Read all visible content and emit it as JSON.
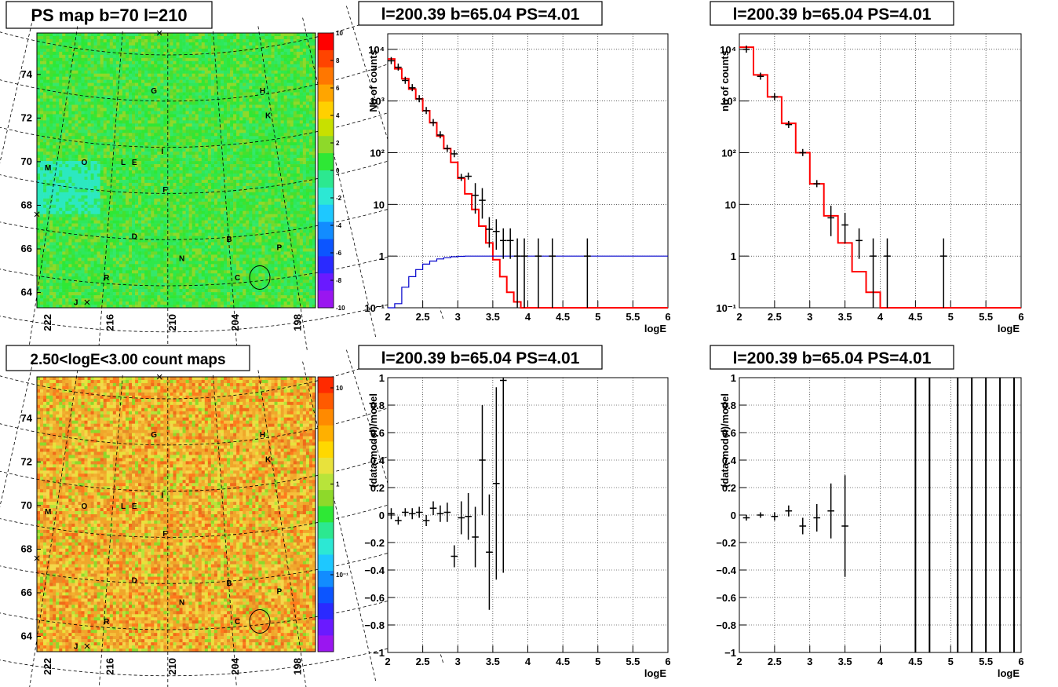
{
  "panels": [
    {
      "id": "psmap",
      "title": "PS map b=70 l=210"
    },
    {
      "id": "spec1",
      "title": "l=200.39 b=65.04 PS=4.01"
    },
    {
      "id": "spec2",
      "title": "l=200.39 b=65.04 PS=4.01"
    },
    {
      "id": "countmap",
      "title": "2.50<logE<3.00 count maps"
    },
    {
      "id": "resid1",
      "title": "l=200.39 b=65.04 PS=4.01"
    },
    {
      "id": "resid2",
      "title": "l=200.39 b=65.04 PS=4.01"
    }
  ],
  "chart_data": [
    {
      "type": "heatmap",
      "title": "PS map b=70 l=210",
      "x_ticks": [
        "222",
        "216",
        "210",
        "204",
        "198"
      ],
      "y_ticks": [
        "64",
        "66",
        "68",
        "70",
        "72",
        "74"
      ],
      "colorbar_ticks": [
        "10",
        "8",
        "6",
        "4",
        "2",
        "0",
        "-2",
        "-4",
        "-6",
        "-8",
        "-10"
      ],
      "zlim": [
        -10,
        10
      ],
      "labels": [
        "G",
        "H",
        "K",
        "I",
        "M",
        "O",
        "L",
        "E",
        "F",
        "D",
        "B",
        "P",
        "N",
        "R",
        "C",
        "J"
      ],
      "colors": {
        "background": "#2ee835",
        "accent": "#8ed92a"
      }
    },
    {
      "type": "line",
      "title": "l=200.39 b=65.04 PS=4.01",
      "xlabel": "logE",
      "ylabel": "Nb of counts",
      "xlim": [
        2,
        6
      ],
      "ylim": [
        0.1,
        20000
      ],
      "yscale": "log",
      "grid": true,
      "x_ticks": [
        "2",
        "2.5",
        "3",
        "3.5",
        "4",
        "4.5",
        "5",
        "5.5",
        "6"
      ],
      "y_ticks": [
        "10⁻¹",
        "1",
        "10",
        "10²",
        "10³",
        "10⁴"
      ],
      "series": [
        {
          "role": "model",
          "color": "#ff0000",
          "step_edges": [
            2.0,
            2.1,
            2.2,
            2.3,
            2.4,
            2.5,
            2.6,
            2.7,
            2.8,
            2.9,
            3.0,
            3.1,
            3.2,
            3.3,
            3.4,
            3.5,
            3.6,
            3.7,
            3.8,
            3.9,
            4.0,
            4.1,
            6.0
          ],
          "values": [
            6500,
            4200,
            2700,
            1700,
            1100,
            650,
            380,
            210,
            120,
            65,
            32,
            16,
            8,
            3.8,
            1.8,
            0.85,
            0.4,
            0.2,
            0.13,
            0.1,
            0.1,
            0.1
          ]
        },
        {
          "role": "ratio",
          "color": "#0000cc",
          "step_edges": [
            2.0,
            2.1,
            2.2,
            2.3,
            2.4,
            2.5,
            2.6,
            2.7,
            2.8,
            2.9,
            3.0,
            3.1,
            3.2,
            3.3,
            6.0
          ],
          "values": [
            0.05,
            0.12,
            0.25,
            0.4,
            0.55,
            0.7,
            0.8,
            0.88,
            0.93,
            0.97,
            0.99,
            1,
            1,
            1
          ]
        },
        {
          "role": "data",
          "color": "#000000",
          "points": [
            [
              2.05,
              6000
            ],
            [
              2.15,
              4500
            ],
            [
              2.25,
              2500
            ],
            [
              2.35,
              1800
            ],
            [
              2.45,
              1100
            ],
            [
              2.55,
              650
            ],
            [
              2.65,
              380
            ],
            [
              2.75,
              220
            ],
            [
              2.85,
              120
            ],
            [
              2.95,
              95
            ],
            [
              3.05,
              33
            ],
            [
              3.15,
              35
            ],
            [
              3.25,
              15
            ],
            [
              3.35,
              12
            ],
            [
              3.45,
              3.3
            ],
            [
              3.55,
              3
            ],
            [
              3.65,
              2
            ],
            [
              3.75,
              2
            ],
            [
              3.85,
              1
            ],
            [
              3.95,
              1
            ],
            [
              4.15,
              1
            ],
            [
              4.35,
              1
            ],
            [
              4.85,
              1
            ]
          ]
        }
      ]
    },
    {
      "type": "line",
      "title": "l=200.39 b=65.04 PS=4.01",
      "xlabel": "logE",
      "ylabel": "nb of counts",
      "xlim": [
        2,
        6
      ],
      "ylim": [
        0.1,
        20000
      ],
      "yscale": "log",
      "grid": true,
      "x_ticks": [
        "2",
        "2.5",
        "3",
        "3.5",
        "4",
        "4.5",
        "5",
        "5.5",
        "6"
      ],
      "y_ticks": [
        "10⁻¹",
        "1",
        "10",
        "10²",
        "10³",
        "10⁴"
      ],
      "series": [
        {
          "role": "model",
          "color": "#ff0000",
          "step_edges": [
            2.0,
            2.2,
            2.4,
            2.6,
            2.8,
            3.0,
            3.2,
            3.4,
            3.6,
            3.8,
            4.0,
            4.2,
            6.0
          ],
          "values": [
            11000,
            3200,
            1200,
            370,
            100,
            25,
            6,
            1.8,
            0.5,
            0.2,
            0.1,
            0.1
          ]
        },
        {
          "role": "data",
          "color": "#000000",
          "points": [
            [
              2.1,
              10000
            ],
            [
              2.3,
              3000
            ],
            [
              2.5,
              1200
            ],
            [
              2.7,
              350
            ],
            [
              2.9,
              100
            ],
            [
              3.1,
              25
            ],
            [
              3.3,
              5.5
            ],
            [
              3.5,
              4
            ],
            [
              3.7,
              2
            ],
            [
              3.9,
              1
            ],
            [
              4.1,
              1
            ],
            [
              4.9,
              1
            ]
          ]
        }
      ]
    },
    {
      "type": "heatmap",
      "title": "2.50<logE<3.00 count maps",
      "x_ticks": [
        "222",
        "216",
        "210",
        "204",
        "198"
      ],
      "y_ticks": [
        "64",
        "66",
        "68",
        "70",
        "72",
        "74"
      ],
      "colorbar_ticks": [
        "10",
        "1",
        "10⁻¹"
      ],
      "zscale": "log",
      "labels": [
        "G",
        "H",
        "K",
        "I",
        "M",
        "O",
        "L",
        "E",
        "F",
        "D",
        "B",
        "P",
        "N",
        "R",
        "C",
        "J"
      ],
      "colors": {
        "background": "#f0a62a",
        "accent": "#e8e23c"
      }
    },
    {
      "type": "scatter",
      "title": "l=200.39 b=65.04 PS=4.01",
      "xlabel": "logE",
      "ylabel": "(data-model)/model",
      "xlim": [
        2,
        6
      ],
      "ylim": [
        -1,
        1
      ],
      "grid": true,
      "x_ticks": [
        "2",
        "2.5",
        "3",
        "3.5",
        "4",
        "4.5",
        "5",
        "5.5",
        "6"
      ],
      "y_ticks": [
        "−1",
        "−0.8",
        "−0.6",
        "−0.4",
        "−0.2",
        "0",
        "0.2",
        "0.4",
        "0.6",
        "0.8",
        "1"
      ],
      "points": [
        [
          2.05,
          0.01,
          0.04
        ],
        [
          2.15,
          -0.04,
          0.03
        ],
        [
          2.25,
          0.02,
          0.03
        ],
        [
          2.35,
          0.01,
          0.04
        ],
        [
          2.45,
          0.02,
          0.04
        ],
        [
          2.55,
          -0.04,
          0.04
        ],
        [
          2.65,
          0.05,
          0.05
        ],
        [
          2.75,
          0.01,
          0.06
        ],
        [
          2.85,
          0.02,
          0.07
        ],
        [
          2.95,
          -0.3,
          0.08
        ],
        [
          3.05,
          -0.02,
          0.12
        ],
        [
          3.15,
          -0.01,
          0.17
        ],
        [
          3.25,
          -0.16,
          0.22
        ],
        [
          3.35,
          0.4,
          0.4
        ],
        [
          3.45,
          -0.27,
          0.42
        ],
        [
          3.55,
          0.23,
          0.7
        ],
        [
          3.65,
          0.98,
          1.4
        ]
      ]
    },
    {
      "type": "scatter",
      "title": "l=200.39 b=65.04 PS=4.01",
      "xlabel": "logE",
      "ylabel": "(data-model)/model",
      "xlim": [
        2,
        6
      ],
      "ylim": [
        -1,
        1
      ],
      "grid": true,
      "x_ticks": [
        "2",
        "2.5",
        "3",
        "3.5",
        "4",
        "4.5",
        "5",
        "5.5",
        "6"
      ],
      "y_ticks": [
        "−1",
        "−0.8",
        "−0.6",
        "−0.4",
        "−0.2",
        "0",
        "0.2",
        "0.4",
        "0.6",
        "0.8",
        "1"
      ],
      "points": [
        [
          2.1,
          -0.02,
          0.02
        ],
        [
          2.3,
          0.0,
          0.02
        ],
        [
          2.5,
          -0.01,
          0.03
        ],
        [
          2.7,
          0.03,
          0.04
        ],
        [
          2.9,
          -0.08,
          0.06
        ],
        [
          3.1,
          -0.02,
          0.1
        ],
        [
          3.3,
          0.03,
          0.2
        ],
        [
          3.5,
          -0.08,
          0.37
        ]
      ],
      "vertical_lines": [
        4.5,
        4.7,
        5.1,
        5.3,
        5.5,
        5.7,
        5.9
      ]
    }
  ]
}
